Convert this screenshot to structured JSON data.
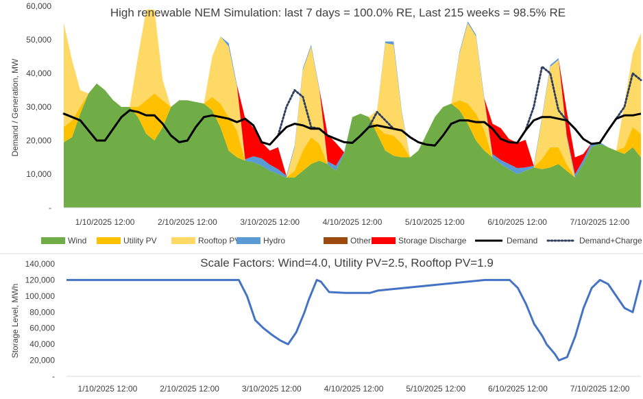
{
  "chart_data": [
    {
      "type": "area",
      "title": "High renewable NEM Simulation: last 7 days = 100.0% RE, Last 215 weeks = 98.5% RE",
      "xlabel": "",
      "ylabel": "Demand / Generation, MW",
      "ylim": [
        0,
        60000
      ],
      "yticks": [
        0,
        10000,
        20000,
        30000,
        40000,
        50000,
        60000
      ],
      "ytick_labels": [
        "-",
        "10,000",
        "20,000",
        "30,000",
        "40,000",
        "50,000",
        "60,000"
      ],
      "xticks": [
        0,
        1,
        2,
        3,
        4,
        5,
        6
      ],
      "xtick_labels": [
        "1/10/2025 12:00",
        "2/10/2025 12:00",
        "3/10/2025 12:00",
        "4/10/2025 12:00",
        "5/10/2025 12:00",
        "6/10/2025 12:00",
        "7/10/2025 12:00"
      ],
      "xlim": [
        -0.5,
        6.5
      ],
      "x": [
        -0.5,
        -0.4,
        -0.3,
        -0.2,
        -0.1,
        0.0,
        0.1,
        0.2,
        0.3,
        0.4,
        0.5,
        0.6,
        0.7,
        0.8,
        0.9,
        1.0,
        1.1,
        1.2,
        1.3,
        1.4,
        1.5,
        1.6,
        1.7,
        1.8,
        1.9,
        2.0,
        2.1,
        2.2,
        2.3,
        2.4,
        2.5,
        2.6,
        2.7,
        2.8,
        2.9,
        3.0,
        3.1,
        3.2,
        3.3,
        3.4,
        3.5,
        3.6,
        3.7,
        3.8,
        3.9,
        4.0,
        4.1,
        4.2,
        4.3,
        4.4,
        4.5,
        4.6,
        4.7,
        4.8,
        4.9,
        5.0,
        5.1,
        5.2,
        5.3,
        5.4,
        5.5,
        5.6,
        5.7,
        5.8,
        5.9,
        6.0,
        6.1,
        6.2,
        6.3,
        6.4,
        6.5
      ],
      "series": [
        {
          "name": "Wind",
          "color": "#70ad47",
          "values": [
            19500,
            21000,
            28000,
            34000,
            37000,
            35000,
            32000,
            30000,
            30000,
            27000,
            22000,
            20000,
            24000,
            30000,
            32000,
            32000,
            31500,
            31000,
            29000,
            24000,
            17000,
            15000,
            14000,
            13500,
            12500,
            11000,
            10000,
            9000,
            9000,
            11000,
            13000,
            14000,
            13000,
            11000,
            16000,
            27000,
            28000,
            27000,
            22000,
            17000,
            15500,
            15000,
            15000,
            17000,
            22000,
            27000,
            30000,
            31000,
            29000,
            25000,
            20000,
            17000,
            15000,
            13000,
            11500,
            10000,
            11000,
            12000,
            11500,
            12000,
            13000,
            11000,
            9000,
            13000,
            18000,
            19000,
            18000,
            17000,
            16000,
            18000,
            15000
          ]
        },
        {
          "name": "Utility PV",
          "color": "#ffc000",
          "values": [
            4500,
            5000,
            2000,
            0,
            0,
            0,
            0,
            0,
            0,
            3000,
            10000,
            14000,
            8000,
            0,
            0,
            0,
            0,
            0,
            4000,
            7000,
            10000,
            8000,
            0,
            0,
            0,
            0,
            0,
            0,
            2000,
            6000,
            8000,
            5000,
            0,
            0,
            0,
            0,
            0,
            0,
            2000,
            5000,
            6000,
            4000,
            0,
            0,
            0,
            0,
            0,
            0,
            3000,
            6000,
            8000,
            6000,
            0,
            0,
            0,
            0,
            0,
            0,
            3000,
            6000,
            5000,
            2000,
            0,
            0,
            0,
            0,
            0,
            0,
            2000,
            6000,
            7000
          ]
        },
        {
          "name": "Rooftop PV",
          "color": "#ffd966",
          "values": [
            31000,
            18000,
            5000,
            0,
            0,
            0,
            0,
            0,
            0,
            15000,
            27000,
            25000,
            6000,
            0,
            0,
            0,
            0,
            0,
            12000,
            20000,
            21000,
            13000,
            0,
            0,
            0,
            0,
            0,
            0,
            7000,
            24000,
            27000,
            16000,
            0,
            0,
            0,
            0,
            0,
            0,
            5000,
            27000,
            27000,
            9000,
            0,
            0,
            0,
            0,
            0,
            0,
            14000,
            24000,
            23000,
            9000,
            0,
            0,
            0,
            0,
            0,
            0,
            12000,
            24000,
            26000,
            8000,
            0,
            0,
            0,
            0,
            0,
            0,
            13000,
            22000,
            30000
          ]
        },
        {
          "name": "Hydro",
          "color": "#5b9bd5",
          "values": [
            0,
            0,
            0,
            0,
            0,
            0,
            0,
            0,
            0,
            0,
            0,
            0,
            0,
            0,
            0,
            0,
            0,
            0,
            0,
            0,
            1000,
            600,
            400,
            1800,
            2200,
            1800,
            1500,
            500,
            500,
            500,
            500,
            500,
            800,
            1500,
            500,
            0,
            0,
            0,
            0,
            500,
            1000,
            500,
            0,
            0,
            0,
            0,
            0,
            0,
            500,
            500,
            500,
            600,
            1000,
            1200,
            1500,
            1800,
            1000,
            500,
            500,
            500,
            500,
            800,
            1000,
            1200,
            1200,
            500,
            0,
            0,
            0,
            0,
            0
          ]
        },
        {
          "name": "Other",
          "color": "#9c4a10",
          "values": [
            0,
            0,
            0,
            0,
            0,
            0,
            0,
            0,
            0,
            0,
            0,
            0,
            0,
            0,
            0,
            0,
            0,
            0,
            0,
            0,
            0,
            0,
            0,
            0,
            0,
            0,
            0,
            0,
            0,
            0,
            0,
            0,
            0,
            0,
            0,
            0,
            0,
            0,
            0,
            0,
            0,
            0,
            0,
            0,
            0,
            0,
            0,
            0,
            0,
            0,
            0,
            0,
            0,
            0,
            0,
            0,
            0,
            0,
            0,
            0,
            0,
            0,
            0,
            0,
            0,
            0,
            0,
            0,
            0,
            0,
            0
          ]
        },
        {
          "name": "Storage Discharge",
          "color": "#ff0000",
          "values": [
            0,
            0,
            0,
            0,
            0,
            0,
            0,
            0,
            0,
            0,
            0,
            0,
            0,
            0,
            0,
            0,
            0,
            0,
            0,
            0,
            0,
            0,
            12200,
            8500,
            4800,
            4200,
            6500,
            0,
            0,
            0,
            0,
            0,
            8000,
            6800,
            0,
            0,
            0,
            0,
            0,
            0,
            0,
            0,
            0,
            0,
            0,
            0,
            0,
            0,
            0,
            0,
            0,
            0,
            9000,
            9500,
            7500,
            7500,
            8200,
            0,
            0,
            0,
            0,
            7000,
            5000,
            1800,
            0,
            0,
            0,
            0,
            0,
            0,
            0
          ]
        },
        {
          "name": "Demand",
          "color": "#000000",
          "line": "solid",
          "values": [
            28000,
            27000,
            26000,
            23000,
            20000,
            20000,
            23500,
            27000,
            29000,
            28500,
            27500,
            27500,
            25000,
            21500,
            19500,
            20000,
            24000,
            27000,
            27500,
            27000,
            26500,
            25500,
            26500,
            24500,
            19500,
            18800,
            21500,
            24000,
            25000,
            24500,
            23500,
            23500,
            21500,
            20500,
            19500,
            19300,
            21500,
            24000,
            24500,
            24000,
            23500,
            23000,
            21000,
            19500,
            18800,
            18500,
            21500,
            25000,
            26000,
            26000,
            25500,
            25500,
            23500,
            20500,
            19500,
            19300,
            23000,
            26000,
            27000,
            27000,
            26500,
            26000,
            23500,
            20500,
            19000,
            19300,
            23000,
            26500,
            27500,
            27500,
            28000
          ]
        },
        {
          "name": "Demand+Charge",
          "color": "#2f3f5f",
          "line": "dotted",
          "values": [
            28000,
            27000,
            26000,
            23000,
            20000,
            20000,
            23500,
            27000,
            29000,
            28500,
            27500,
            27500,
            25000,
            21500,
            19500,
            20000,
            24000,
            27000,
            27500,
            27000,
            26500,
            25500,
            26500,
            24500,
            19500,
            18800,
            21500,
            30000,
            35000,
            33000,
            24000,
            23500,
            21500,
            20500,
            19500,
            19300,
            21500,
            24000,
            28500,
            26000,
            23500,
            23000,
            21000,
            19500,
            18800,
            18500,
            21500,
            25000,
            26000,
            26000,
            25500,
            25500,
            23500,
            20500,
            19500,
            19300,
            23000,
            30000,
            42000,
            40000,
            29000,
            26000,
            23500,
            20500,
            19000,
            19300,
            23000,
            26500,
            30000,
            40000,
            38000
          ]
        }
      ],
      "legend": [
        "Wind",
        "Utility PV",
        "Rooftop PV",
        "Hydro",
        "Other",
        "Storage Discharge",
        "Demand",
        "Demand+Charge"
      ],
      "legend_position": "bottom",
      "grid": false
    },
    {
      "type": "line",
      "title": "Scale Factors: Wind=4.0, Utility PV=2.5, Rooftop PV=1.9",
      "xlabel": "",
      "ylabel": "Storage Level, MWh",
      "ylim": [
        0,
        140000
      ],
      "yticks": [
        0,
        20000,
        40000,
        60000,
        80000,
        100000,
        120000,
        140000
      ],
      "ytick_labels": [
        "-",
        "20,000",
        "40,000",
        "60,000",
        "80,000",
        "100,000",
        "120,000",
        "140,000"
      ],
      "xticks": [
        0,
        1,
        2,
        3,
        4,
        5,
        6
      ],
      "xtick_labels": [
        "1/10/2025 12:00",
        "2/10/2025 12:00",
        "3/10/2025 12:00",
        "4/10/2025 12:00",
        "5/10/2025 12:00",
        "6/10/2025 12:00",
        "7/10/2025 12:00"
      ],
      "xlim": [
        -0.5,
        6.5
      ],
      "series": [
        {
          "name": "Storage Level",
          "color": "#4472c4",
          "x": [
            -0.5,
            1.6,
            1.7,
            1.8,
            1.9,
            2.0,
            2.1,
            2.2,
            2.3,
            2.4,
            2.45,
            2.55,
            2.6,
            2.7,
            2.9,
            3.0,
            3.1,
            3.2,
            3.3,
            4.6,
            4.7,
            4.8,
            4.9,
            5.0,
            5.1,
            5.2,
            5.3,
            5.35,
            5.45,
            5.5,
            5.6,
            5.7,
            5.8,
            5.9,
            6.0,
            6.1,
            6.2,
            6.3,
            6.4,
            6.5
          ],
          "values": [
            120000,
            120000,
            100000,
            70000,
            60000,
            52000,
            45000,
            40000,
            55000,
            80000,
            95000,
            120000,
            118000,
            105000,
            104000,
            104000,
            104000,
            104000,
            107000,
            120000,
            120000,
            120000,
            120000,
            110000,
            90000,
            65000,
            50000,
            40000,
            28000,
            20000,
            24000,
            50000,
            85000,
            110000,
            120000,
            115000,
            100000,
            85000,
            80000,
            120000
          ]
        }
      ],
      "grid": false
    }
  ]
}
